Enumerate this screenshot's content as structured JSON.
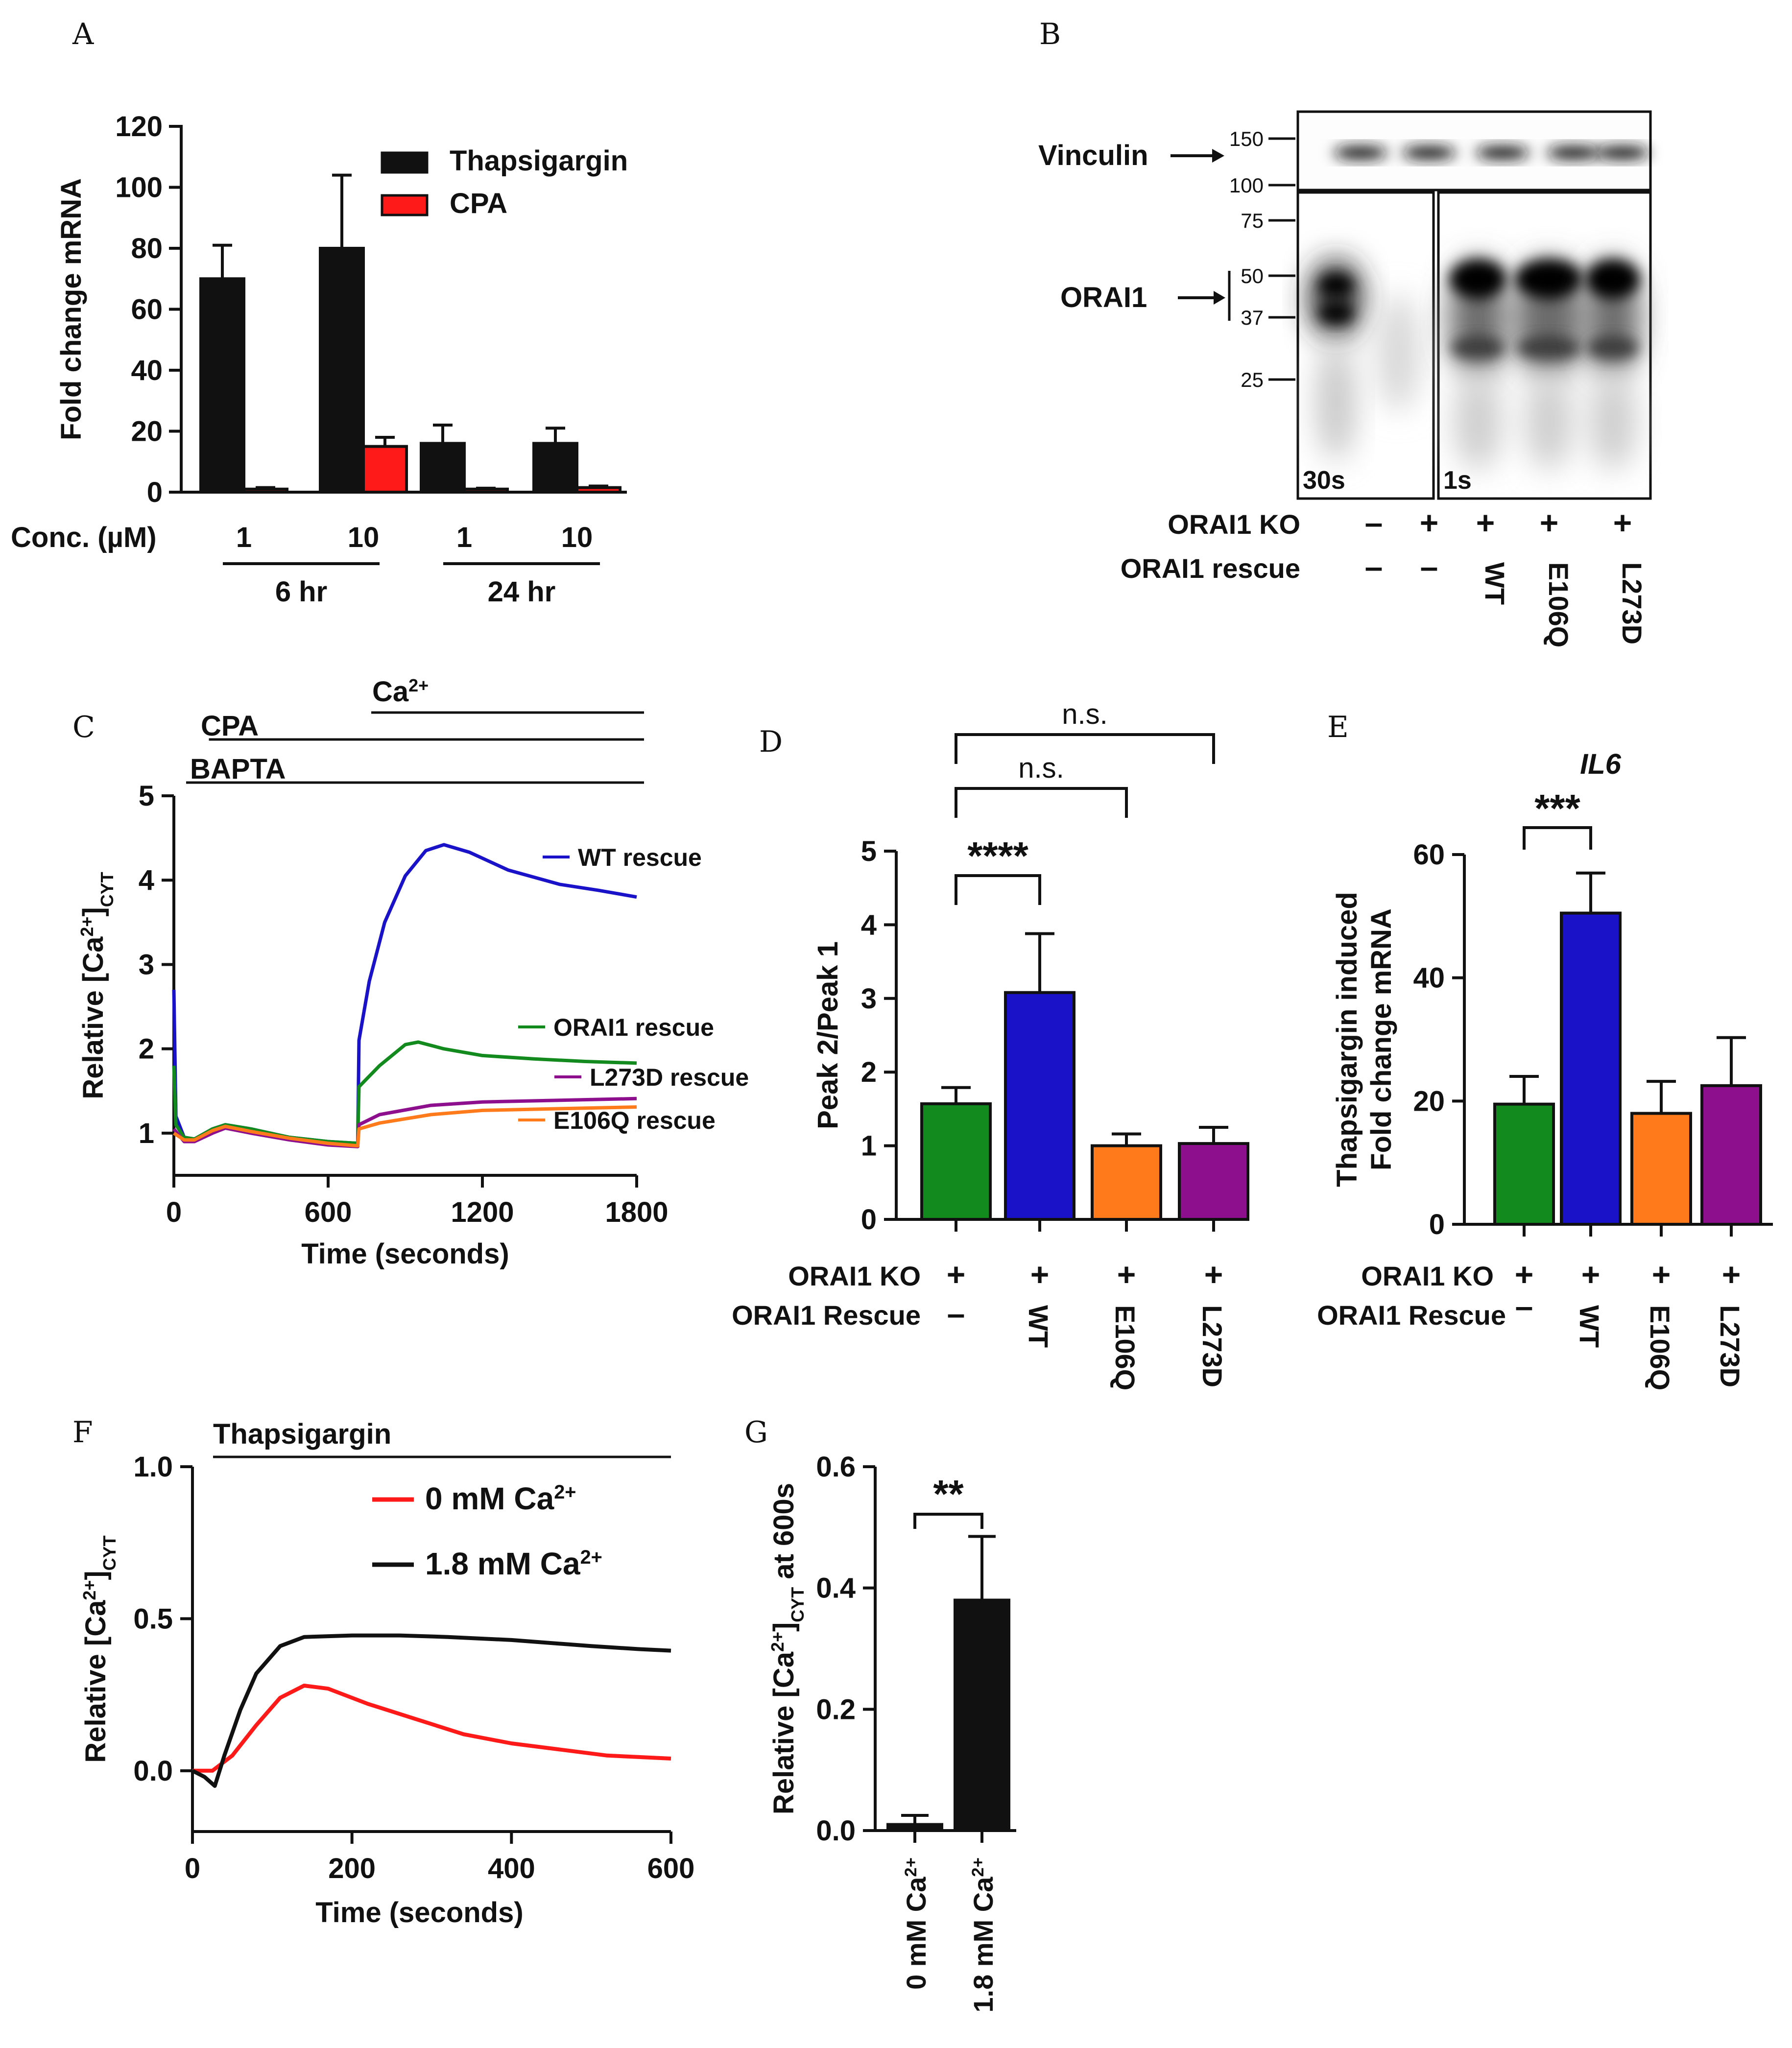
{
  "figure": {
    "panel_letters": [
      "A",
      "B",
      "C",
      "D",
      "E",
      "F",
      "G"
    ]
  },
  "colors": {
    "black": "#111111",
    "red": "#ff1a1a",
    "green": "#138a1d",
    "blue": "#1a12c8",
    "orange": "#ff7a1a",
    "purple": "#8d0f8d"
  },
  "chart_data": [
    {
      "panel": "A",
      "type": "bar",
      "ylabel": "Fold change mRNA",
      "ylim": [
        0,
        120
      ],
      "yticks": [
        0,
        20,
        40,
        60,
        80,
        100,
        120
      ],
      "conc_label": "Conc. (µM)",
      "categories": [
        "1",
        "10",
        "1",
        "10"
      ],
      "groups": [
        "6 hr",
        "24 hr"
      ],
      "series": [
        {
          "name": "Thapsigargin",
          "color": "#111111",
          "values": [
            70,
            80,
            16,
            16
          ],
          "errors": [
            11,
            24,
            6,
            5
          ]
        },
        {
          "name": "CPA",
          "color": "#ff1a1a",
          "values": [
            1,
            15,
            1,
            1.5
          ],
          "errors": [
            0.5,
            3,
            0.3,
            0.5
          ]
        }
      ]
    },
    {
      "panel": "B",
      "type": "blot",
      "bands": [
        "Vinculin",
        "ORAI1"
      ],
      "mw_markers": [
        "150",
        "100",
        "75",
        "50",
        "37",
        "25"
      ],
      "exposures": [
        "30s",
        "1s"
      ],
      "rows": [
        {
          "label": "ORAI1 KO",
          "values": [
            "–",
            "+",
            "+",
            "+",
            "+"
          ]
        },
        {
          "label": "ORAI1 rescue",
          "values": [
            "–",
            "–",
            "WT",
            "E106Q",
            "L273D"
          ]
        }
      ],
      "lane_colors": [
        "#ff1a1a",
        "#138a1d",
        "#1a12c8",
        "#ff7a1a",
        "#8d0f8d"
      ]
    },
    {
      "panel": "C",
      "type": "line",
      "xlabel": "Time (seconds)",
      "ylabel_main": "Relative [Ca",
      "ylabel_sup": "2+",
      "ylabel_end": "]",
      "ylabel_sub": "CYT",
      "xlim": [
        0,
        1800
      ],
      "ylim": [
        0.5,
        5
      ],
      "xticks": [
        0,
        600,
        1200,
        1800
      ],
      "yticks": [
        1,
        2,
        3,
        4,
        5
      ],
      "treatments": [
        {
          "label": "BAPTA",
          "start": 0,
          "end": 1800
        },
        {
          "label": "CPA",
          "start": 60,
          "end": 1800
        },
        {
          "label": "Ca",
          "sup": "2+",
          "start": 720,
          "end": 1800
        }
      ],
      "series": [
        {
          "name": "WT rescue",
          "color": "#1a12c8",
          "points": [
            [
              0,
              2.7
            ],
            [
              8,
              1.2
            ],
            [
              40,
              0.95
            ],
            [
              80,
              0.93
            ],
            [
              150,
              1.05
            ],
            [
              200,
              1.1
            ],
            [
              300,
              1.05
            ],
            [
              450,
              0.95
            ],
            [
              600,
              0.9
            ],
            [
              715,
              0.88
            ],
            [
              720,
              2.1
            ],
            [
              760,
              2.8
            ],
            [
              820,
              3.5
            ],
            [
              900,
              4.05
            ],
            [
              980,
              4.35
            ],
            [
              1050,
              4.42
            ],
            [
              1150,
              4.33
            ],
            [
              1300,
              4.12
            ],
            [
              1500,
              3.95
            ],
            [
              1650,
              3.88
            ],
            [
              1800,
              3.8
            ]
          ]
        },
        {
          "name": "ORAI1 rescue",
          "color": "#138a1d",
          "points": [
            [
              0,
              1.8
            ],
            [
              8,
              1.1
            ],
            [
              40,
              0.95
            ],
            [
              80,
              0.93
            ],
            [
              150,
              1.05
            ],
            [
              200,
              1.1
            ],
            [
              300,
              1.05
            ],
            [
              450,
              0.95
            ],
            [
              600,
              0.9
            ],
            [
              715,
              0.88
            ],
            [
              720,
              1.55
            ],
            [
              800,
              1.8
            ],
            [
              900,
              2.05
            ],
            [
              950,
              2.08
            ],
            [
              1050,
              2.0
            ],
            [
              1200,
              1.92
            ],
            [
              1400,
              1.88
            ],
            [
              1600,
              1.85
            ],
            [
              1800,
              1.83
            ]
          ]
        },
        {
          "name": "L273D rescue",
          "color": "#8d0f8d",
          "points": [
            [
              0,
              1.05
            ],
            [
              40,
              0.9
            ],
            [
              80,
              0.9
            ],
            [
              150,
              1.0
            ],
            [
              200,
              1.06
            ],
            [
              300,
              1.0
            ],
            [
              450,
              0.92
            ],
            [
              600,
              0.86
            ],
            [
              715,
              0.84
            ],
            [
              720,
              1.1
            ],
            [
              800,
              1.22
            ],
            [
              1000,
              1.33
            ],
            [
              1200,
              1.37
            ],
            [
              1500,
              1.39
            ],
            [
              1800,
              1.41
            ]
          ]
        },
        {
          "name": "E106Q rescue",
          "color": "#ff7a1a",
          "points": [
            [
              0,
              1.0
            ],
            [
              40,
              0.92
            ],
            [
              80,
              0.92
            ],
            [
              150,
              1.03
            ],
            [
              200,
              1.08
            ],
            [
              300,
              1.02
            ],
            [
              450,
              0.94
            ],
            [
              600,
              0.88
            ],
            [
              715,
              0.85
            ],
            [
              720,
              1.05
            ],
            [
              800,
              1.12
            ],
            [
              1000,
              1.22
            ],
            [
              1200,
              1.27
            ],
            [
              1500,
              1.29
            ],
            [
              1800,
              1.31
            ]
          ]
        }
      ]
    },
    {
      "panel": "D",
      "type": "bar",
      "ylabel": "Peak 2/Peak 1",
      "ylim": [
        0,
        5
      ],
      "yticks": [
        0,
        1,
        2,
        3,
        4,
        5
      ],
      "categories": [
        "–",
        "WT",
        "E106Q",
        "L273D"
      ],
      "values": [
        1.57,
        3.08,
        1.0,
        1.03
      ],
      "errors": [
        0.22,
        0.8,
        0.16,
        0.22
      ],
      "colors": [
        "#138a1d",
        "#1a12c8",
        "#ff7a1a",
        "#8d0f8d"
      ],
      "row_labels": [
        "ORAI1 KO",
        "ORAI1 Rescue"
      ],
      "ko_values": [
        "+",
        "+",
        "+",
        "+"
      ],
      "comparisons": [
        {
          "from": 0,
          "to": 1,
          "label": "****"
        },
        {
          "from": 0,
          "to": 2,
          "label": "n.s."
        },
        {
          "from": 0,
          "to": 3,
          "label": "n.s."
        }
      ]
    },
    {
      "panel": "E",
      "type": "bar",
      "title": "IL6",
      "ylabel_lines": [
        "Thapsigargin induced",
        "Fold change mRNA"
      ],
      "ylim": [
        0,
        60
      ],
      "yticks": [
        0,
        20,
        40,
        60
      ],
      "categories": [
        "–",
        "WT",
        "E106Q",
        "L273D"
      ],
      "values": [
        19.5,
        50.5,
        18,
        22.5
      ],
      "errors": [
        4.5,
        6.5,
        5.2,
        7.8
      ],
      "colors": [
        "#138a1d",
        "#1a12c8",
        "#ff7a1a",
        "#8d0f8d"
      ],
      "row_labels": [
        "ORAI1 KO",
        "ORAI1 Rescue"
      ],
      "ko_values": [
        "+",
        "+",
        "+",
        "+"
      ],
      "comparisons": [
        {
          "from": 0,
          "to": 1,
          "label": "***"
        }
      ]
    },
    {
      "panel": "F",
      "type": "line",
      "xlabel": "Time (seconds)",
      "ylabel_main": "Relative [Ca",
      "ylabel_sup": "2+",
      "ylabel_end": "]",
      "ylabel_sub": "CYT",
      "treatment": "Thapsigargin",
      "xlim": [
        0,
        600
      ],
      "ylim": [
        -0.2,
        1.0
      ],
      "xticks": [
        0,
        200,
        400,
        600
      ],
      "yticks": [
        "1.0",
        "0.5",
        "0.0"
      ],
      "series": [
        {
          "name": "0 mM Ca",
          "sup": "2+",
          "color": "#ff1a1a",
          "points": [
            [
              0,
              0
            ],
            [
              25,
              0.0
            ],
            [
              50,
              0.05
            ],
            [
              80,
              0.15
            ],
            [
              110,
              0.24
            ],
            [
              140,
              0.28
            ],
            [
              170,
              0.27
            ],
            [
              220,
              0.22
            ],
            [
              280,
              0.17
            ],
            [
              340,
              0.12
            ],
            [
              400,
              0.09
            ],
            [
              460,
              0.07
            ],
            [
              520,
              0.05
            ],
            [
              560,
              0.045
            ],
            [
              600,
              0.04
            ]
          ]
        },
        {
          "name": "1.8 mM Ca",
          "sup": "2+",
          "color": "#111111",
          "points": [
            [
              0,
              0
            ],
            [
              15,
              -0.02
            ],
            [
              28,
              -0.05
            ],
            [
              40,
              0.05
            ],
            [
              60,
              0.2
            ],
            [
              80,
              0.32
            ],
            [
              110,
              0.41
            ],
            [
              140,
              0.44
            ],
            [
              200,
              0.445
            ],
            [
              260,
              0.445
            ],
            [
              320,
              0.44
            ],
            [
              400,
              0.43
            ],
            [
              500,
              0.41
            ],
            [
              560,
              0.4
            ],
            [
              600,
              0.395
            ]
          ]
        }
      ]
    },
    {
      "panel": "G",
      "type": "bar",
      "ylabel_main": "Relative [Ca",
      "ylabel_sup": "2+",
      "ylabel_mid": "]",
      "ylabel_sub": "CYT",
      "ylabel_end": " at 600s",
      "ylim": [
        0,
        0.6
      ],
      "yticks": [
        "0.0",
        "0.2",
        "0.4",
        "0.6"
      ],
      "categories": [
        {
          "main": "0 mM Ca",
          "sup": "2+"
        },
        {
          "main": "1.8 mM Ca",
          "sup": "2+"
        }
      ],
      "values": [
        0.01,
        0.38
      ],
      "errors": [
        0.015,
        0.105
      ],
      "colors": [
        "#111111",
        "#111111"
      ],
      "comparisons": [
        {
          "from": 0,
          "to": 1,
          "label": "**"
        }
      ]
    }
  ]
}
